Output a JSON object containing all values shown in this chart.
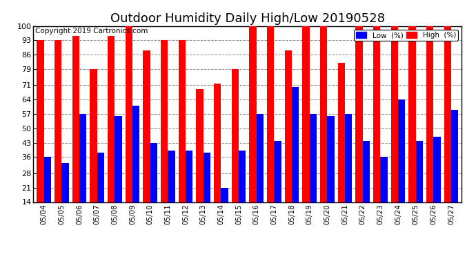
{
  "title": "Outdoor Humidity Daily High/Low 20190528",
  "copyright": "Copyright 2019 Cartronics.com",
  "dates": [
    "05/04",
    "05/05",
    "05/06",
    "05/07",
    "05/08",
    "05/09",
    "05/10",
    "05/11",
    "05/12",
    "05/13",
    "05/14",
    "05/15",
    "05/16",
    "05/17",
    "05/18",
    "05/19",
    "05/20",
    "05/21",
    "05/22",
    "05/23",
    "05/24",
    "05/25",
    "05/26",
    "05/27"
  ],
  "high": [
    93,
    93,
    95,
    79,
    95,
    100,
    88,
    93,
    93,
    69,
    72,
    79,
    100,
    100,
    88,
    100,
    100,
    82,
    100,
    100,
    100,
    100,
    100,
    100
  ],
  "low": [
    36,
    33,
    57,
    38,
    56,
    61,
    43,
    39,
    39,
    38,
    21,
    39,
    57,
    44,
    70,
    57,
    56,
    57,
    44,
    36,
    64,
    44,
    46,
    59
  ],
  "bar_color_high": "#ff0000",
  "bar_color_low": "#0000ff",
  "bg_color": "#ffffff",
  "grid_color": "#888888",
  "yticks": [
    14,
    21,
    28,
    36,
    43,
    50,
    57,
    64,
    71,
    79,
    86,
    93,
    100
  ],
  "ymin": 14,
  "ymax": 100,
  "legend_low_label": "Low  (%)",
  "legend_high_label": "High  (%)",
  "title_fontsize": 13,
  "copyright_fontsize": 7.5
}
